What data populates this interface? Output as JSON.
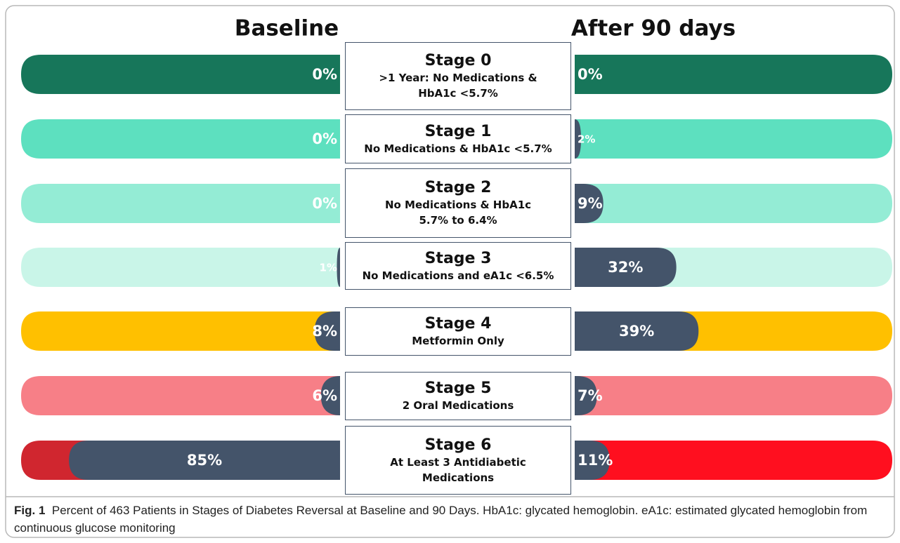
{
  "chart_data": {
    "type": "bar",
    "orientation": "horizontal",
    "categories": [
      "Stage 0",
      "Stage 1",
      "Stage 2",
      "Stage 3",
      "Stage 4",
      "Stage 5",
      "Stage 6"
    ],
    "descriptions": [
      ">1 Year:  No Medications & HbA1c <5.7%",
      "No Medications & HbA1c <5.7%",
      "No Medications & HbA1c 5.7% to 6.4%",
      "No Medications and eA1c <6.5%",
      "Metformin Only",
      "2 Oral Medications",
      "At Least 3 Antidiabetic Medications"
    ],
    "xlim": [
      0,
      100
    ],
    "series": [
      {
        "name": "Baseline",
        "color": "#44546a",
        "track_colors": [
          "#17765a",
          "#5de0bf",
          "#94ecd5",
          "#c9f5e8",
          "#ffc000",
          "#f77f87",
          "#d0262f"
        ],
        "values": [
          0,
          0,
          0,
          1,
          8,
          6,
          85
        ],
        "value_labels": [
          "0%",
          "0%",
          "0%",
          "1%",
          "8%",
          "6%",
          "85%"
        ]
      },
      {
        "name": "After 90 days",
        "color": "#44546a",
        "track_colors": [
          "#17765a",
          "#5de0bf",
          "#94ecd5",
          "#c9f5e8",
          "#ffc000",
          "#f77f87",
          "#ff0f1f"
        ],
        "values": [
          0,
          2,
          9,
          32,
          39,
          7,
          11
        ],
        "value_labels": [
          "0%",
          "2%",
          "9%",
          "32%",
          "39%",
          "7%",
          "11%"
        ]
      }
    ]
  },
  "caption_label": "Fig. 1",
  "caption": "Percent of 463 Patients in Stages of Diabetes Reversal at Baseline and 90 Days. HbA1c: glycated hemoglobin. eA1c: estimated glycated hemoglobin from continuous glucose monitoring"
}
